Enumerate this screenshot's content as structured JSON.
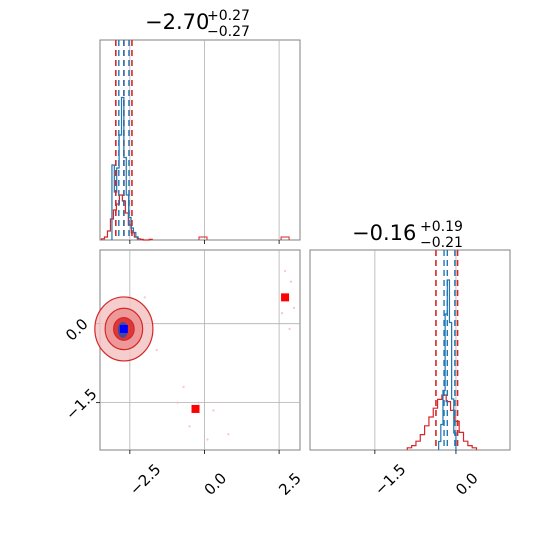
{
  "chart_data": {
    "type": "corner",
    "colors": {
      "histogram": "#d62728",
      "quantile_line": "#1f77b4",
      "sample_fill": "#d62728",
      "truth_marker": "#ff0000",
      "best_fit_marker": "#0000ff",
      "grid": "#b0b0b0",
      "frame": "#808080"
    },
    "parameters": [
      {
        "title_value": "−2.70",
        "title_upper": "+0.27",
        "title_lower": "−0.27",
        "median": -2.7,
        "lower": -2.97,
        "upper": -2.43,
        "range": [
          -3.5,
          3.2
        ],
        "ticks": [
          -2.5,
          0.0,
          2.5
        ],
        "tick_labels": [
          "−2.5",
          "0.0",
          "2.5"
        ],
        "histogram": [
          0.02,
          0.05,
          0.15,
          0.35,
          0.5,
          0.6,
          0.75,
          0.65,
          0.45,
          0.25,
          0.12,
          0.05,
          0.02,
          0.01,
          0.0,
          0.0,
          0.01
        ],
        "hist_start": -3.45,
        "hist_bin": 0.1,
        "truth_hist": [
          0.5,
          0.32,
          0.48,
          0.7,
          0.95,
          0.55,
          0.3,
          0.15,
          0.08,
          0.05,
          0.02
        ],
        "truth_start": -3.1,
        "truth_bin": 0.08
      },
      {
        "title_value": "−0.16",
        "title_upper": "+0.19",
        "title_lower": "−0.21",
        "median": -0.16,
        "lower": -0.37,
        "upper": 0.03,
        "range": [
          -2.7,
          1.0
        ],
        "ticks": [
          -1.5,
          0.0
        ],
        "tick_labels": [
          "−1.5",
          "0.0"
        ],
        "histogram": [
          0.02,
          0.04,
          0.08,
          0.14,
          0.22,
          0.3,
          0.38,
          0.46,
          0.5,
          0.44,
          0.36,
          0.26,
          0.16,
          0.08,
          0.04,
          0.02
        ],
        "hist_start": -0.9,
        "hist_bin": 0.08,
        "peak_hist": [
          0.05,
          0.15,
          0.35,
          0.8,
          1.0,
          0.75,
          0.3,
          0.1
        ],
        "peak_start": -0.32,
        "peak_bin": 0.04
      }
    ],
    "joint": {
      "x_range": [
        -3.5,
        3.2
      ],
      "y_range": [
        -2.4,
        1.4
      ],
      "x_ticks": [
        -2.5,
        0.0,
        2.5
      ],
      "y_ticks": [
        0.0,
        -1.5
      ],
      "y_tick_labels": [
        "0.0",
        "−1.5"
      ],
      "density_center": [
        -2.7,
        -0.1
      ],
      "contour_sigmas": [
        0.3,
        0.55,
        0.85
      ],
      "truth_points": [
        [
          -0.3,
          -1.62
        ],
        [
          2.7,
          0.5
        ]
      ],
      "best_fit_point": [
        -2.7,
        -0.1
      ],
      "outlier_points": [
        [
          2.7,
          1.0
        ],
        [
          2.9,
          0.8
        ],
        [
          2.6,
          0.2
        ],
        [
          2.85,
          -0.1
        ],
        [
          3.0,
          0.3
        ],
        [
          -0.7,
          -1.2
        ],
        [
          -0.2,
          -1.5
        ],
        [
          0.3,
          -1.65
        ],
        [
          -0.5,
          -1.95
        ],
        [
          0.8,
          -2.1
        ],
        [
          0.1,
          -2.2
        ],
        [
          -0.9,
          -1.5
        ],
        [
          -1.6,
          -0.5
        ],
        [
          -2.0,
          0.5
        ]
      ]
    }
  }
}
